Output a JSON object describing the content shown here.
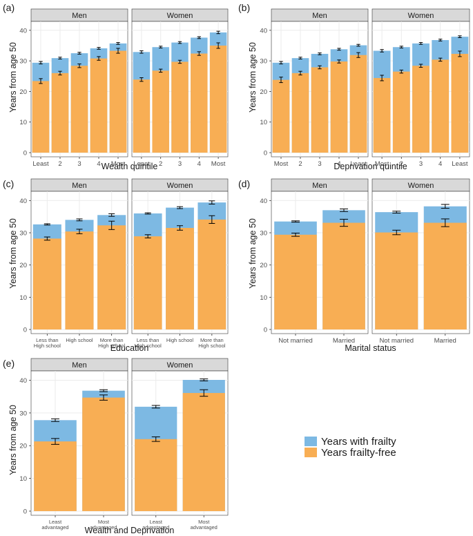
{
  "colors": {
    "frailty": "#7DB9E3",
    "frailty_free": "#F8AE54",
    "strip_bg": "#d9d9d9",
    "grid": "#ebebeb"
  },
  "legend": {
    "frailty": "Years with frailty",
    "frailty_free": "Years frailty-free"
  },
  "chart_data": [
    {
      "label": "(a)",
      "type": "bar",
      "stacked": true,
      "facets": [
        "Men",
        "Women"
      ],
      "categories": [
        "Least",
        "2",
        "3",
        "4",
        "Most"
      ],
      "xlabel": "Wealth quintile",
      "ylabel": "Years from age 50",
      "ylim": [
        0,
        42
      ],
      "yticks": [
        0,
        10,
        20,
        30,
        40
      ],
      "series": [
        {
          "name": "Years frailty-free",
          "values": [
            [
              23.4,
              26.0,
              28.4,
              30.8,
              33.3
            ],
            [
              23.9,
              26.8,
              29.7,
              32.4,
              35.0
            ]
          ],
          "err": [
            [
              0.8,
              0.6,
              0.6,
              0.6,
              0.8
            ],
            [
              0.6,
              0.5,
              0.5,
              0.6,
              0.9
            ]
          ]
        },
        {
          "name": "Years with frailty",
          "totals": [
            [
              29.4,
              30.9,
              32.5,
              34.1,
              35.7
            ],
            [
              32.9,
              34.5,
              36.0,
              37.6,
              39.3
            ]
          ],
          "err": [
            [
              0.4,
              0.3,
              0.3,
              0.3,
              0.3
            ],
            [
              0.4,
              0.3,
              0.3,
              0.3,
              0.4
            ]
          ]
        }
      ]
    },
    {
      "label": "(b)",
      "type": "bar",
      "stacked": true,
      "facets": [
        "Men",
        "Women"
      ],
      "categories": [
        "Most",
        "2",
        "3",
        "4",
        "Least"
      ],
      "xlabel": "Deprivation quintile",
      "ylabel": "Years from age 50",
      "ylim": [
        0,
        42
      ],
      "yticks": [
        0,
        10,
        20,
        30,
        40
      ],
      "series": [
        {
          "name": "Years frailty-free",
          "values": [
            [
              23.8,
              26.0,
              27.9,
              29.8,
              31.9
            ],
            [
              24.4,
              26.5,
              28.4,
              30.4,
              32.3
            ]
          ],
          "err": [
            [
              0.9,
              0.6,
              0.5,
              0.5,
              0.8
            ],
            [
              0.9,
              0.5,
              0.5,
              0.5,
              0.9
            ]
          ]
        },
        {
          "name": "Years with frailty",
          "totals": [
            [
              29.4,
              30.9,
              32.3,
              33.8,
              35.1
            ],
            [
              33.3,
              34.5,
              35.7,
              36.8,
              37.9
            ]
          ],
          "err": [
            [
              0.4,
              0.3,
              0.3,
              0.3,
              0.3
            ],
            [
              0.4,
              0.3,
              0.3,
              0.3,
              0.3
            ]
          ]
        }
      ]
    },
    {
      "label": "(c)",
      "type": "bar",
      "stacked": true,
      "facets": [
        "Men",
        "Women"
      ],
      "categories": [
        "Less than\nHigh school",
        "High school",
        "More than\nHigh school"
      ],
      "xlabel": "Education",
      "ylabel": "Years from age 50",
      "ylim": [
        0,
        42
      ],
      "yticks": [
        0,
        10,
        20,
        30,
        40
      ],
      "series": [
        {
          "name": "Years frailty-free",
          "values": [
            [
              28.2,
              30.4,
              32.3
            ],
            [
              28.9,
              31.5,
              34.1
            ]
          ],
          "err": [
            [
              0.5,
              0.7,
              1.3
            ],
            [
              0.5,
              0.7,
              1.2
            ]
          ]
        },
        {
          "name": "Years with frailty",
          "totals": [
            [
              32.6,
              34.0,
              35.5
            ],
            [
              36.0,
              37.8,
              39.4
            ]
          ],
          "err": [
            [
              0.2,
              0.3,
              0.4
            ],
            [
              0.2,
              0.3,
              0.5
            ]
          ]
        }
      ]
    },
    {
      "label": "(d)",
      "type": "bar",
      "stacked": true,
      "facets": [
        "Men",
        "Women"
      ],
      "categories": [
        "Not married",
        "Married"
      ],
      "xlabel": "Marital status",
      "ylabel": "Years from age 50",
      "ylim": [
        0,
        42
      ],
      "yticks": [
        0,
        10,
        20,
        30,
        40
      ],
      "series": [
        {
          "name": "Years frailty-free",
          "values": [
            [
              29.4,
              33.1
            ],
            [
              30.1,
              33.1
            ]
          ],
          "err": [
            [
              0.5,
              1.1
            ],
            [
              0.7,
              1.2
            ]
          ]
        },
        {
          "name": "Years with frailty",
          "totals": [
            [
              33.5,
              37.0
            ],
            [
              36.4,
              38.2
            ]
          ],
          "err": [
            [
              0.2,
              0.4
            ],
            [
              0.3,
              0.6
            ]
          ]
        }
      ]
    },
    {
      "label": "(e)",
      "type": "bar",
      "stacked": true,
      "facets": [
        "Men",
        "Women"
      ],
      "categories": [
        "Least\nadvantaged",
        "Most\nadvantaged"
      ],
      "xlabel": "Wealth and Deprivation",
      "ylabel": "Years from age 50",
      "ylim": [
        0,
        42
      ],
      "yticks": [
        0,
        10,
        20,
        30,
        40
      ],
      "series": [
        {
          "name": "Years frailty-free",
          "values": [
            [
              21.3,
              34.7
            ],
            [
              22.0,
              36.1
            ]
          ],
          "err": [
            [
              0.9,
              0.8
            ],
            [
              0.7,
              1.0
            ]
          ]
        },
        {
          "name": "Years with frailty",
          "totals": [
            [
              27.8,
              36.8
            ],
            [
              31.9,
              40.1
            ]
          ],
          "err": [
            [
              0.4,
              0.3
            ],
            [
              0.4,
              0.3
            ]
          ]
        }
      ]
    }
  ]
}
